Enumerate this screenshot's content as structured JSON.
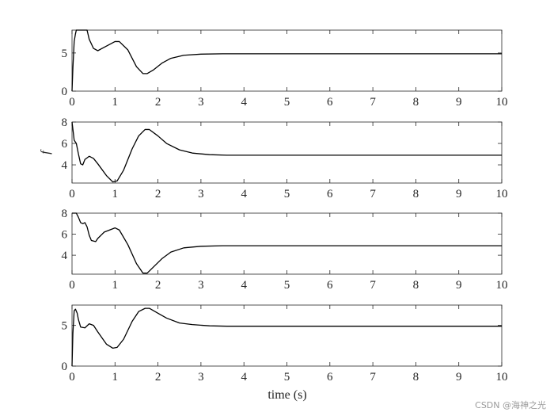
{
  "figure": {
    "xlabel": "time (s)",
    "watermark": "CSDN @海神之光"
  },
  "chart_data": [
    {
      "type": "line",
      "title": "",
      "ylabel": "",
      "xlim": [
        0,
        10
      ],
      "ylim": [
        0,
        8
      ],
      "yticks": [
        0,
        5
      ],
      "xticks": [
        0,
        1,
        2,
        3,
        4,
        5,
        6,
        7,
        8,
        9,
        10
      ],
      "series": [
        {
          "x": [
            0,
            0.02,
            0.05,
            0.08,
            0.1,
            0.15,
            0.2,
            0.3,
            0.35,
            0.4,
            0.5,
            0.6,
            0.8,
            1.0,
            1.1,
            1.3,
            1.5,
            1.65,
            1.75,
            1.9,
            2.1,
            2.3,
            2.6,
            3.0,
            3.5,
            4.0,
            5,
            6,
            7,
            8,
            9,
            10
          ],
          "y": [
            0,
            3.0,
            6.5,
            7.5,
            8,
            8,
            8,
            8,
            8,
            6.8,
            5.6,
            5.3,
            5.9,
            6.5,
            6.5,
            5.4,
            3.2,
            2.3,
            2.3,
            2.8,
            3.7,
            4.3,
            4.7,
            4.85,
            4.9,
            4.9,
            4.9,
            4.9,
            4.9,
            4.9,
            4.9,
            4.9
          ]
        }
      ]
    },
    {
      "type": "line",
      "title": "",
      "ylabel": "f",
      "xlim": [
        0,
        10
      ],
      "ylim": [
        2.3,
        8
      ],
      "yticks": [
        4,
        6,
        8
      ],
      "xticks": [
        0,
        1,
        2,
        3,
        4,
        5,
        6,
        7,
        8,
        9,
        10
      ],
      "series": [
        {
          "x": [
            0,
            0.03,
            0.05,
            0.1,
            0.15,
            0.2,
            0.25,
            0.3,
            0.4,
            0.5,
            0.6,
            0.8,
            0.95,
            1.05,
            1.2,
            1.4,
            1.55,
            1.7,
            1.8,
            2.0,
            2.2,
            2.5,
            2.8,
            3.2,
            3.6,
            4.0,
            5,
            6,
            7,
            8,
            9,
            10
          ],
          "y": [
            8,
            7,
            6.3,
            6.0,
            5.0,
            4.1,
            4.0,
            4.5,
            4.8,
            4.6,
            4.1,
            3.0,
            2.4,
            2.5,
            3.5,
            5.5,
            6.7,
            7.3,
            7.3,
            6.7,
            6.0,
            5.4,
            5.1,
            4.95,
            4.9,
            4.9,
            4.9,
            4.9,
            4.9,
            4.9,
            4.9,
            4.9
          ]
        }
      ]
    },
    {
      "type": "line",
      "title": "",
      "ylabel": "",
      "xlim": [
        0,
        10
      ],
      "ylim": [
        2.2,
        8
      ],
      "yticks": [
        4,
        6,
        8
      ],
      "xticks": [
        0,
        1,
        2,
        3,
        4,
        5,
        6,
        7,
        8,
        9,
        10
      ],
      "series": [
        {
          "x": [
            0,
            0.1,
            0.15,
            0.2,
            0.25,
            0.3,
            0.35,
            0.4,
            0.45,
            0.55,
            0.6,
            0.75,
            1.0,
            1.1,
            1.3,
            1.5,
            1.65,
            1.75,
            1.9,
            2.1,
            2.3,
            2.6,
            3.0,
            3.5,
            4.0,
            5,
            6,
            7,
            8,
            9,
            10
          ],
          "y": [
            8,
            8,
            7.6,
            7.1,
            7.0,
            7.1,
            6.7,
            5.9,
            5.4,
            5.3,
            5.6,
            6.2,
            6.6,
            6.4,
            5.0,
            3.2,
            2.3,
            2.3,
            2.9,
            3.7,
            4.3,
            4.7,
            4.85,
            4.9,
            4.9,
            4.9,
            4.9,
            4.9,
            4.9,
            4.9,
            4.9
          ]
        }
      ]
    },
    {
      "type": "line",
      "title": "",
      "ylabel": "",
      "xlim": [
        0,
        10
      ],
      "ylim": [
        0,
        7.5
      ],
      "yticks": [
        0,
        5
      ],
      "xticks": [
        0,
        1,
        2,
        3,
        4,
        5,
        6,
        7,
        8,
        9,
        10
      ],
      "series": [
        {
          "x": [
            0,
            0.02,
            0.05,
            0.08,
            0.12,
            0.15,
            0.2,
            0.3,
            0.4,
            0.5,
            0.6,
            0.8,
            0.95,
            1.05,
            1.2,
            1.4,
            1.55,
            1.7,
            1.8,
            2.0,
            2.2,
            2.5,
            2.8,
            3.2,
            3.6,
            4.0,
            5,
            6,
            7,
            8,
            9,
            10
          ],
          "y": [
            0,
            4.0,
            6.8,
            7.0,
            6.5,
            5.7,
            4.8,
            4.7,
            5.2,
            5.0,
            4.2,
            2.7,
            2.2,
            2.3,
            3.3,
            5.5,
            6.7,
            7.1,
            7.1,
            6.5,
            5.9,
            5.3,
            5.1,
            4.95,
            4.9,
            4.9,
            4.9,
            4.9,
            4.9,
            4.9,
            4.9,
            4.9
          ]
        }
      ]
    }
  ]
}
